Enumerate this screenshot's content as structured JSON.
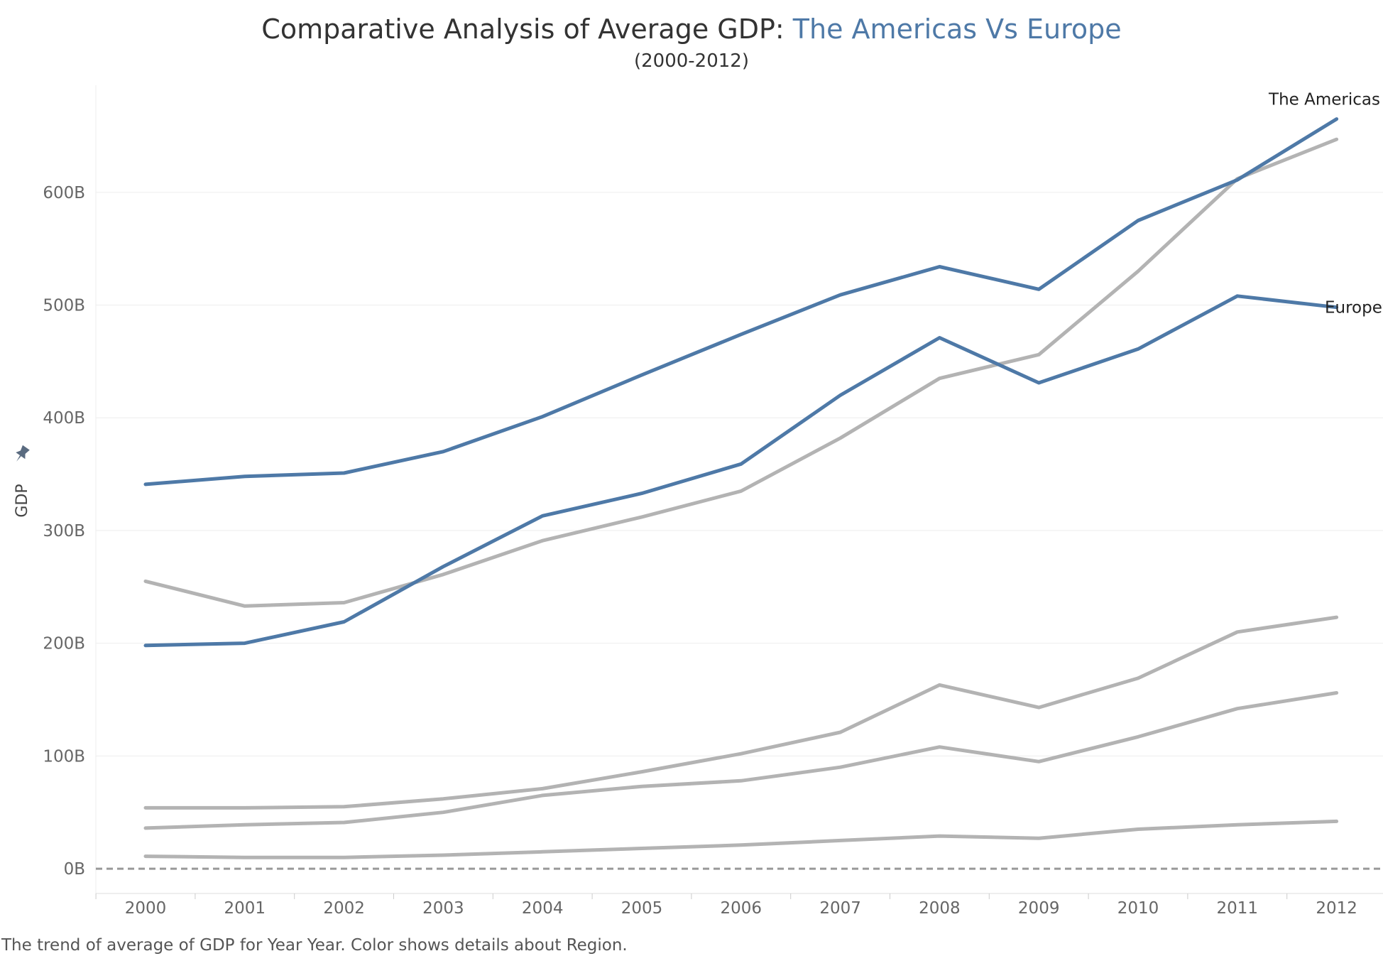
{
  "chart_data": {
    "type": "line",
    "title_prefix": "Comparative Analysis of Average GDP: ",
    "title_highlight": "The Americas Vs Europe",
    "subtitle": "(2000-2012)",
    "ylabel": "GDP",
    "caption": "The trend of average of GDP for Year Year.  Color shows details about Region.",
    "x": [
      2000,
      2001,
      2002,
      2003,
      2004,
      2005,
      2006,
      2007,
      2008,
      2009,
      2010,
      2011,
      2012
    ],
    "y_ticks": [
      {
        "value": 0,
        "label": "0B"
      },
      {
        "value": 100,
        "label": "100B"
      },
      {
        "value": 200,
        "label": "200B"
      },
      {
        "value": 300,
        "label": "300B"
      },
      {
        "value": 400,
        "label": "400B"
      },
      {
        "value": 500,
        "label": "500B"
      },
      {
        "value": 600,
        "label": "600B"
      }
    ],
    "ylim": [
      -22,
      695
    ],
    "highlight_color": "#4e79a7",
    "muted_color": "#b3b3b3",
    "series": [
      {
        "name": "The Americas",
        "highlight": true,
        "values": [
          341,
          348,
          351,
          370,
          401,
          438,
          474,
          509,
          534,
          514,
          575,
          611,
          665
        ]
      },
      {
        "name": "Europe",
        "highlight": true,
        "values": [
          198,
          200,
          219,
          268,
          313,
          333,
          359,
          420,
          471,
          431,
          461,
          508,
          498
        ]
      },
      {
        "highlight": false,
        "values": [
          255,
          233,
          236,
          261,
          291,
          312,
          335,
          382,
          435,
          456,
          530,
          612,
          647
        ]
      },
      {
        "highlight": false,
        "values": [
          54,
          54,
          55,
          62,
          71,
          86,
          102,
          121,
          163,
          143,
          169,
          210,
          223
        ]
      },
      {
        "highlight": false,
        "values": [
          36,
          39,
          41,
          50,
          65,
          73,
          78,
          90,
          108,
          95,
          117,
          142,
          156
        ]
      },
      {
        "highlight": false,
        "values": [
          11,
          10,
          10,
          12,
          15,
          18,
          21,
          25,
          29,
          27,
          35,
          39,
          42
        ]
      }
    ]
  }
}
